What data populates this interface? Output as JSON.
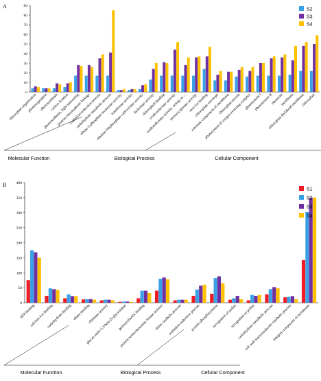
{
  "colors": {
    "S1": "#ee1c25",
    "S2": "#3aa0e6",
    "S3": "#7030a0",
    "S4": "#ffc000"
  },
  "chart_data": [
    {
      "panel_label": "A",
      "type": "bar",
      "ylim": [
        0,
        90
      ],
      "yticks": [
        0,
        10,
        20,
        30,
        40,
        50,
        60,
        70,
        80,
        90
      ],
      "legend": [
        "S2",
        "S3",
        "S4"
      ],
      "legend_position": "top-right",
      "categories": [
        "chloroplast organization",
        "photorespiration",
        "photosynthesis",
        "carbon fixation",
        "photosynthesis, light harvesting",
        "protein-chromophore linkage",
        "oxidation-reduction process",
        "carbohydrate metabolic process",
        "ribose-5-phosphate isomerase activity",
        "transferase activity",
        "ribulose-bisphosphate carboxylase activity",
        "hydrolase activity",
        "chlorophyll binding",
        "oxidoreductase activity",
        "oxidoreductase activity, acting on ...",
        "monooxygenase activity",
        "iron ion binding",
        "chloroplast envelope",
        "extrinsic component of membrane",
        "chloroplast stroma",
        "photosystem II oxygen evolving complex",
        "photosystem I",
        "photosystem II",
        "ribosome",
        "membrane",
        "chloroplast thylakoid membrane",
        "chloroplast"
      ],
      "series": [
        {
          "name": "S2",
          "values": [
            4,
            4,
            4,
            5,
            17,
            17,
            17,
            17,
            2,
            2,
            3,
            13,
            17,
            17,
            17,
            17,
            24,
            12,
            12,
            16,
            16,
            17,
            17,
            17,
            18,
            22,
            22
          ]
        },
        {
          "name": "S3",
          "values": [
            6,
            4,
            9,
            9,
            28,
            28,
            35,
            41,
            2,
            3,
            7,
            24,
            31,
            44,
            28,
            36,
            37,
            18,
            21,
            23,
            22,
            30,
            35,
            36,
            33,
            48,
            50
          ]
        },
        {
          "name": "S4",
          "values": [
            5,
            4,
            8,
            10,
            27,
            26,
            39,
            85,
            3,
            3,
            8,
            30,
            30,
            52,
            36,
            37,
            47,
            22,
            21,
            26,
            26,
            30,
            37,
            39,
            48,
            52,
            59
          ]
        }
      ],
      "groups": [
        "Molecular Function",
        "Biological Process",
        "Cellular Component"
      ]
    },
    {
      "panel_label": "B",
      "type": "bar",
      "ylim": [
        0,
        400
      ],
      "yticks": [
        0,
        50,
        100,
        150,
        200,
        250,
        300,
        350,
        400
      ],
      "legend": [
        "S1",
        "S2",
        "S3",
        "S4"
      ],
      "legend_position": "top-right",
      "categories": [
        "ATP binding",
        "calcium ion binding",
        "carbohydrate binding",
        "chitin binding",
        "chitinase activity",
        "glucan endo-1,3-beta-D-glucosidase",
        "polysaccharide binding",
        "protein serine/threonine kinase activity",
        "chitin catabolic process",
        "oxidation-reduction process",
        "protein phosphorylation",
        "recognition of pollen",
        "recognition of pollen",
        "carbohydrate metabolic process",
        "cell wall macromolecule catabolic process",
        "integral component of membrane"
      ],
      "series": [
        {
          "name": "S1",
          "values": [
            75,
            23,
            15,
            11,
            8,
            3,
            15,
            40,
            8,
            23,
            30,
            10,
            8,
            28,
            18,
            142
          ]
        },
        {
          "name": "S2",
          "values": [
            175,
            48,
            28,
            12,
            10,
            4,
            40,
            80,
            10,
            44,
            82,
            15,
            26,
            45,
            20,
            302
          ]
        },
        {
          "name": "S3",
          "values": [
            168,
            45,
            22,
            12,
            10,
            4,
            40,
            84,
            10,
            57,
            88,
            23,
            23,
            52,
            22,
            350
          ]
        },
        {
          "name": "S4",
          "values": [
            150,
            43,
            22,
            10,
            8,
            3,
            32,
            78,
            10,
            60,
            65,
            12,
            26,
            48,
            12,
            350
          ]
        }
      ],
      "groups": [
        "Molecular Function",
        "Biological Process",
        "Cellular Component"
      ]
    }
  ]
}
